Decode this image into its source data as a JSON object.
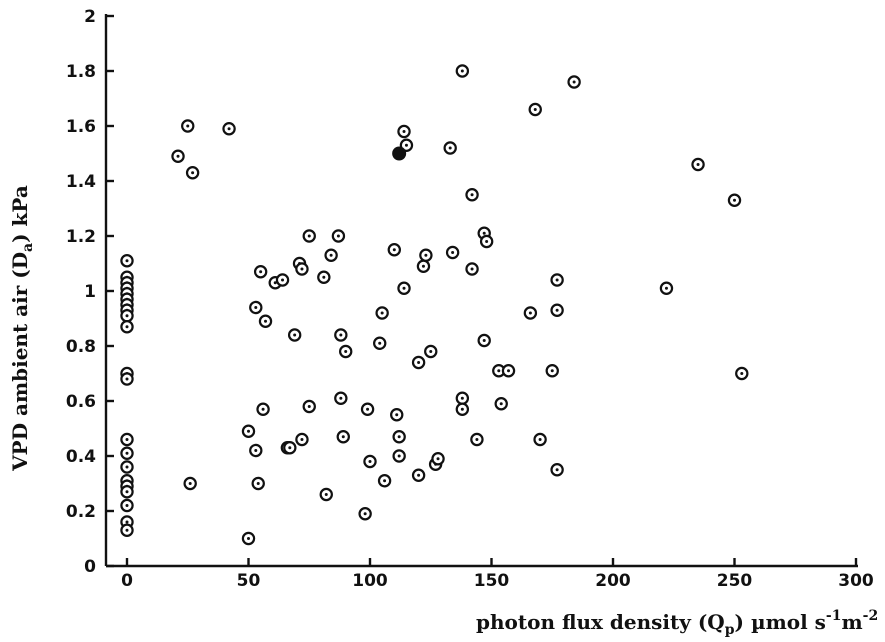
{
  "chart_data": {
    "type": "scatter",
    "title": "",
    "xlabel_main": "photon flux density (Q",
    "xlabel_sub": "p",
    "xlabel_units": ")  µmol s",
    "xlabel_sup1": "-1",
    "xlabel_m": "m",
    "xlabel_sup2": "-2",
    "ylabel_main": "VPD ambient air (D",
    "ylabel_sub": "a",
    "ylabel_units": ")  kPa",
    "xlim": [
      0,
      300
    ],
    "ylim": [
      0,
      2
    ],
    "x_ticks": [
      0,
      50,
      100,
      150,
      200,
      250,
      300
    ],
    "y_ticks": [
      0,
      0.2,
      0.4,
      0.6,
      0.8,
      1,
      1.2,
      1.4,
      1.6,
      1.8,
      2
    ],
    "y_tick_labels": [
      "0",
      "0.2",
      "0.4",
      "0.6",
      "0.8",
      "1",
      "1.2",
      "1.4",
      "1.6",
      "1.8",
      "2"
    ],
    "grid": false,
    "marker": "open-circle-with-dot",
    "highlighted_point": [
      112,
      1.5
    ],
    "points": [
      [
        0,
        1.11
      ],
      [
        0,
        1.05
      ],
      [
        0,
        1.03
      ],
      [
        0,
        1.01
      ],
      [
        0,
        0.99
      ],
      [
        0,
        0.97
      ],
      [
        0,
        0.95
      ],
      [
        0,
        0.93
      ],
      [
        0,
        0.91
      ],
      [
        0,
        0.87
      ],
      [
        0,
        0.7
      ],
      [
        0,
        0.68
      ],
      [
        0,
        0.46
      ],
      [
        0,
        0.41
      ],
      [
        0,
        0.36
      ],
      [
        0,
        0.31
      ],
      [
        0,
        0.29
      ],
      [
        0,
        0.27
      ],
      [
        0,
        0.22
      ],
      [
        0,
        0.16
      ],
      [
        0,
        0.13
      ],
      [
        21,
        1.49
      ],
      [
        25,
        1.6
      ],
      [
        27,
        1.43
      ],
      [
        42,
        1.59
      ],
      [
        26,
        0.3
      ],
      [
        50,
        0.1
      ],
      [
        50,
        0.49
      ],
      [
        53,
        0.94
      ],
      [
        53,
        0.42
      ],
      [
        54,
        0.3
      ],
      [
        55,
        1.07
      ],
      [
        56,
        0.57
      ],
      [
        57,
        0.89
      ],
      [
        61,
        1.03
      ],
      [
        64,
        1.04
      ],
      [
        66,
        0.43
      ],
      [
        67,
        0.43
      ],
      [
        69,
        0.84
      ],
      [
        71,
        1.1
      ],
      [
        72,
        1.08
      ],
      [
        72,
        0.46
      ],
      [
        75,
        1.2
      ],
      [
        75,
        0.58
      ],
      [
        81,
        1.05
      ],
      [
        82,
        0.26
      ],
      [
        84,
        1.13
      ],
      [
        87,
        1.2
      ],
      [
        88,
        0.84
      ],
      [
        88,
        0.61
      ],
      [
        89,
        0.47
      ],
      [
        90,
        0.78
      ],
      [
        98,
        0.19
      ],
      [
        99,
        0.57
      ],
      [
        100,
        0.38
      ],
      [
        104,
        0.81
      ],
      [
        105,
        0.92
      ],
      [
        106,
        0.31
      ],
      [
        110,
        1.15
      ],
      [
        111,
        0.55
      ],
      [
        112,
        0.4
      ],
      [
        112,
        0.47
      ],
      [
        114,
        1.01
      ],
      [
        114,
        1.58
      ],
      [
        115,
        1.53
      ],
      [
        120,
        0.33
      ],
      [
        120,
        0.74
      ],
      [
        122,
        1.09
      ],
      [
        123,
        1.13
      ],
      [
        125,
        0.78
      ],
      [
        127,
        0.37
      ],
      [
        128,
        0.39
      ],
      [
        133,
        1.52
      ],
      [
        134,
        1.14
      ],
      [
        138,
        1.8
      ],
      [
        138,
        0.61
      ],
      [
        138,
        0.57
      ],
      [
        142,
        1.35
      ],
      [
        142,
        1.08
      ],
      [
        144,
        0.46
      ],
      [
        147,
        1.21
      ],
      [
        147,
        0.82
      ],
      [
        148,
        1.18
      ],
      [
        153,
        0.71
      ],
      [
        154,
        0.59
      ],
      [
        157,
        0.71
      ],
      [
        166,
        0.92
      ],
      [
        168,
        1.66
      ],
      [
        170,
        0.46
      ],
      [
        175,
        0.71
      ],
      [
        177,
        1.04
      ],
      [
        177,
        0.93
      ],
      [
        177,
        0.35
      ],
      [
        184,
        1.76
      ],
      [
        222,
        1.01
      ],
      [
        235,
        1.46
      ],
      [
        250,
        1.33
      ],
      [
        253,
        0.7
      ]
    ]
  }
}
